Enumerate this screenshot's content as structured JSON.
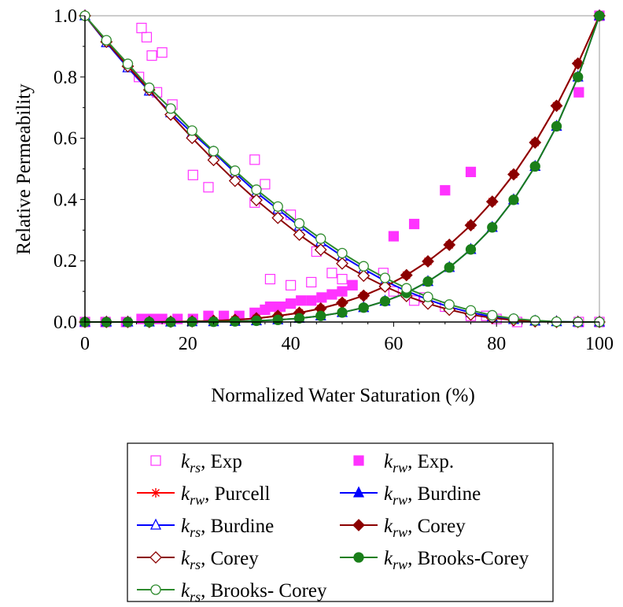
{
  "chart_data": {
    "type": "line",
    "xlabel": "Normalized Water Saturation (%)",
    "ylabel": "Relative Permeability",
    "xlim": [
      0,
      100
    ],
    "ylim": [
      0,
      1
    ],
    "xticks": [
      "0",
      "20",
      "40",
      "60",
      "80",
      "100"
    ],
    "yticks": [
      "0.0",
      "0.2",
      "0.4",
      "0.6",
      "0.8",
      "1.0"
    ],
    "grid": false,
    "legend_placement": "below plot",
    "colors": {
      "exp_magenta": "#ff33ff",
      "purcell_red": "#ff0000",
      "burdine_blue": "#0000ff",
      "corey_darkred": "#8b0000",
      "brooks_green": "#1a7f1a",
      "brooks_open_green": "#2e8b2e"
    },
    "series": [
      {
        "key": "krs_exp",
        "name": "Exp",
        "symbol": "k",
        "subscript": "rs",
        "kind": "scatter",
        "marker": "square-open",
        "color": "#ff33ff",
        "points": [
          [
            10.5,
            0.8
          ],
          [
            11,
            0.96
          ],
          [
            12,
            0.93
          ],
          [
            13,
            0.87
          ],
          [
            14,
            0.75
          ],
          [
            15,
            0.88
          ],
          [
            17,
            0.71
          ],
          [
            21,
            0.48
          ],
          [
            24,
            0.44
          ],
          [
            33,
            0.53
          ],
          [
            35,
            0.45
          ],
          [
            33,
            0.39
          ],
          [
            36,
            0.14
          ],
          [
            40,
            0.35
          ],
          [
            40,
            0.12
          ],
          [
            44,
            0.13
          ],
          [
            45,
            0.23
          ],
          [
            48,
            0.16
          ],
          [
            50,
            0.14
          ],
          [
            52,
            0.12
          ],
          [
            58,
            0.16
          ],
          [
            60,
            0.1
          ],
          [
            64,
            0.07
          ],
          [
            66,
            0.08
          ],
          [
            70,
            0.05
          ],
          [
            75,
            0.02
          ],
          [
            78,
            0.02
          ],
          [
            80,
            0.01
          ],
          [
            84,
            0.0
          ],
          [
            96,
            0.0
          ],
          [
            100,
            0.0
          ]
        ]
      },
      {
        "key": "krw_exp",
        "name": "Exp.",
        "symbol": "k",
        "subscript": "rw",
        "kind": "scatter",
        "marker": "square-filled",
        "color": "#ff33ff",
        "points": [
          [
            0,
            0.0
          ],
          [
            4,
            0.0
          ],
          [
            8,
            0.0
          ],
          [
            11,
            0.01
          ],
          [
            13,
            0.01
          ],
          [
            15,
            0.01
          ],
          [
            18,
            0.01
          ],
          [
            21,
            0.01
          ],
          [
            24,
            0.02
          ],
          [
            27,
            0.02
          ],
          [
            30,
            0.02
          ],
          [
            33,
            0.03
          ],
          [
            35,
            0.04
          ],
          [
            36,
            0.05
          ],
          [
            38,
            0.05
          ],
          [
            40,
            0.06
          ],
          [
            42,
            0.07
          ],
          [
            44,
            0.07
          ],
          [
            46,
            0.08
          ],
          [
            48,
            0.09
          ],
          [
            50,
            0.1
          ],
          [
            52,
            0.12
          ],
          [
            60,
            0.28
          ],
          [
            64,
            0.32
          ],
          [
            70,
            0.43
          ],
          [
            75,
            0.49
          ],
          [
            96,
            0.75
          ],
          [
            100,
            1.0
          ]
        ]
      },
      {
        "key": "krw_purcell",
        "name": "Purcell",
        "symbol": "k",
        "subscript": "rw",
        "kind": "line",
        "marker": "star",
        "color": "#ff0000",
        "points": [
          [
            0,
            0.0
          ],
          [
            4.17,
            0.0
          ],
          [
            8.33,
            0.0
          ],
          [
            12.5,
            0.0
          ],
          [
            16.67,
            0.001
          ],
          [
            20.83,
            0.002
          ],
          [
            25,
            0.004
          ],
          [
            29.17,
            0.007
          ],
          [
            33.33,
            0.012
          ],
          [
            37.5,
            0.02
          ],
          [
            41.67,
            0.03
          ],
          [
            45.83,
            0.044
          ],
          [
            50,
            0.063
          ],
          [
            54.17,
            0.086
          ],
          [
            58.33,
            0.116
          ],
          [
            62.5,
            0.153
          ],
          [
            66.67,
            0.198
          ],
          [
            70.83,
            0.252
          ],
          [
            75,
            0.316
          ],
          [
            79.17,
            0.393
          ],
          [
            83.33,
            0.482
          ],
          [
            87.5,
            0.586
          ],
          [
            91.67,
            0.706
          ],
          [
            95.83,
            0.844
          ],
          [
            100,
            1.0
          ]
        ]
      },
      {
        "key": "krw_burdine",
        "name": "Burdine",
        "symbol": "k",
        "subscript": "rw",
        "kind": "line",
        "marker": "triangle-filled",
        "color": "#0000ff",
        "points": [
          [
            0,
            0.0
          ],
          [
            4.17,
            0.0
          ],
          [
            8.33,
            0.0
          ],
          [
            12.5,
            0.0
          ],
          [
            16.67,
            0.0
          ],
          [
            20.83,
            0.001
          ],
          [
            25,
            0.001
          ],
          [
            29.17,
            0.002
          ],
          [
            33.33,
            0.004
          ],
          [
            37.5,
            0.007
          ],
          [
            41.67,
            0.012
          ],
          [
            45.83,
            0.02
          ],
          [
            50,
            0.031
          ],
          [
            54.17,
            0.047
          ],
          [
            58.33,
            0.068
          ],
          [
            62.5,
            0.095
          ],
          [
            66.67,
            0.132
          ],
          [
            70.83,
            0.178
          ],
          [
            75,
            0.237
          ],
          [
            79.17,
            0.309
          ],
          [
            83.33,
            0.399
          ],
          [
            87.5,
            0.508
          ],
          [
            91.67,
            0.639
          ],
          [
            95.83,
            0.8
          ],
          [
            100,
            1.0
          ]
        ]
      },
      {
        "key": "krs_burdine",
        "name": "Burdine",
        "symbol": "k",
        "subscript": "rs",
        "kind": "line",
        "marker": "triangle-open",
        "color": "#0000ff",
        "points": [
          [
            0,
            1.0
          ],
          [
            4.17,
            0.912
          ],
          [
            8.33,
            0.83
          ],
          [
            12.5,
            0.754
          ],
          [
            16.67,
            0.683
          ],
          [
            20.83,
            0.617
          ],
          [
            25,
            0.555
          ],
          [
            29.17,
            0.487
          ],
          [
            33.33,
            0.423
          ],
          [
            37.5,
            0.368
          ],
          [
            41.67,
            0.313
          ],
          [
            45.83,
            0.262
          ],
          [
            50,
            0.215
          ],
          [
            54.17,
            0.173
          ],
          [
            58.33,
            0.134
          ],
          [
            62.5,
            0.101
          ],
          [
            66.67,
            0.073
          ],
          [
            70.83,
            0.049
          ],
          [
            75,
            0.031
          ],
          [
            79.17,
            0.017
          ],
          [
            83.33,
            0.008
          ],
          [
            87.5,
            0.003
          ],
          [
            91.67,
            0.001
          ],
          [
            95.83,
            0.0
          ],
          [
            100,
            0.0
          ]
        ]
      },
      {
        "key": "krw_corey",
        "name": "Corey",
        "symbol": "k",
        "subscript": "rw",
        "kind": "line",
        "marker": "diamond-filled",
        "color": "#8b0000",
        "points": [
          [
            0,
            0.0
          ],
          [
            4.17,
            0.0
          ],
          [
            8.33,
            0.0
          ],
          [
            12.5,
            0.0
          ],
          [
            16.67,
            0.001
          ],
          [
            20.83,
            0.002
          ],
          [
            25,
            0.004
          ],
          [
            29.17,
            0.007
          ],
          [
            33.33,
            0.012
          ],
          [
            37.5,
            0.02
          ],
          [
            41.67,
            0.03
          ],
          [
            45.83,
            0.044
          ],
          [
            50,
            0.063
          ],
          [
            54.17,
            0.086
          ],
          [
            58.33,
            0.116
          ],
          [
            62.5,
            0.153
          ],
          [
            66.67,
            0.198
          ],
          [
            70.83,
            0.252
          ],
          [
            75,
            0.316
          ],
          [
            79.17,
            0.393
          ],
          [
            83.33,
            0.482
          ],
          [
            87.5,
            0.586
          ],
          [
            91.67,
            0.706
          ],
          [
            95.83,
            0.844
          ],
          [
            100,
            1.0
          ]
        ]
      },
      {
        "key": "krs_corey",
        "name": "Corey",
        "symbol": "k",
        "subscript": "rs",
        "kind": "line",
        "marker": "diamond-open",
        "color": "#8b0000",
        "points": [
          [
            0,
            1.0
          ],
          [
            4.17,
            0.915
          ],
          [
            8.33,
            0.835
          ],
          [
            12.5,
            0.758
          ],
          [
            16.67,
            0.677
          ],
          [
            20.83,
            0.601
          ],
          [
            25,
            0.529
          ],
          [
            29.17,
            0.461
          ],
          [
            33.33,
            0.398
          ],
          [
            37.5,
            0.34
          ],
          [
            41.67,
            0.285
          ],
          [
            45.83,
            0.236
          ],
          [
            50,
            0.191
          ],
          [
            54.17,
            0.151
          ],
          [
            58.33,
            0.116
          ],
          [
            62.5,
            0.085
          ],
          [
            66.67,
            0.06
          ],
          [
            70.83,
            0.04
          ],
          [
            75,
            0.024
          ],
          [
            79.17,
            0.013
          ],
          [
            83.33,
            0.006
          ],
          [
            87.5,
            0.002
          ],
          [
            91.67,
            0.0
          ],
          [
            95.83,
            0.0
          ],
          [
            100,
            0.0
          ]
        ]
      },
      {
        "key": "krw_brooks",
        "name": "Brooks-Corey",
        "symbol": "k",
        "subscript": "rw",
        "kind": "line",
        "marker": "circle-filled",
        "color": "#1a7f1a",
        "points": [
          [
            0,
            0.0
          ],
          [
            4.17,
            0.0
          ],
          [
            8.33,
            0.0
          ],
          [
            12.5,
            0.0
          ],
          [
            16.67,
            0.0
          ],
          [
            20.83,
            0.001
          ],
          [
            25,
            0.001
          ],
          [
            29.17,
            0.002
          ],
          [
            33.33,
            0.004
          ],
          [
            37.5,
            0.007
          ],
          [
            41.67,
            0.012
          ],
          [
            45.83,
            0.02
          ],
          [
            50,
            0.031
          ],
          [
            54.17,
            0.047
          ],
          [
            58.33,
            0.068
          ],
          [
            62.5,
            0.095
          ],
          [
            66.67,
            0.132
          ],
          [
            70.83,
            0.178
          ],
          [
            75,
            0.237
          ],
          [
            79.17,
            0.309
          ],
          [
            83.33,
            0.399
          ],
          [
            87.5,
            0.508
          ],
          [
            91.67,
            0.639
          ],
          [
            95.83,
            0.8
          ],
          [
            100,
            1.0
          ]
        ]
      },
      {
        "key": "krs_brooks",
        "name": "Brooks- Corey",
        "symbol": "k",
        "subscript": "rs",
        "kind": "line",
        "marker": "circle-open",
        "color": "#2e8b2e",
        "points": [
          [
            0,
            1.0
          ],
          [
            4.17,
            0.92
          ],
          [
            8.33,
            0.843
          ],
          [
            12.5,
            0.765
          ],
          [
            16.67,
            0.697
          ],
          [
            20.83,
            0.625
          ],
          [
            25,
            0.558
          ],
          [
            29.17,
            0.494
          ],
          [
            33.33,
            0.432
          ],
          [
            37.5,
            0.377
          ],
          [
            41.67,
            0.322
          ],
          [
            45.83,
            0.272
          ],
          [
            50,
            0.225
          ],
          [
            54.17,
            0.182
          ],
          [
            58.33,
            0.144
          ],
          [
            62.5,
            0.11
          ],
          [
            66.67,
            0.082
          ],
          [
            70.83,
            0.057
          ],
          [
            75,
            0.038
          ],
          [
            79.17,
            0.022
          ],
          [
            83.33,
            0.011
          ],
          [
            87.5,
            0.005
          ],
          [
            91.67,
            0.001
          ],
          [
            95.83,
            0.0
          ],
          [
            100,
            0.0
          ]
        ]
      }
    ],
    "legend": [
      {
        "series": "krs_exp",
        "symbol": "k",
        "subscript": "rs",
        "text": ", Exp"
      },
      {
        "series": "krw_exp",
        "symbol": "k",
        "subscript": "rw",
        "text": ", Exp."
      },
      {
        "series": "krw_purcell",
        "symbol": "k",
        "subscript": "rw",
        "text": ", Purcell"
      },
      {
        "series": "krw_burdine",
        "symbol": "k",
        "subscript": "rw",
        "text": ", Burdine"
      },
      {
        "series": "krs_burdine",
        "symbol": "k",
        "subscript": "rs",
        "text": ", Burdine"
      },
      {
        "series": "krw_corey",
        "symbol": "k",
        "subscript": "rw",
        "text": ", Corey"
      },
      {
        "series": "krs_corey",
        "symbol": "k",
        "subscript": "rs",
        "text": ", Corey"
      },
      {
        "series": "krw_brooks",
        "symbol": "k",
        "subscript": "rw",
        "text": ", Brooks-Corey"
      },
      {
        "series": "krs_brooks",
        "symbol": "k",
        "subscript": "rs",
        "text": ", Brooks- Corey"
      }
    ]
  }
}
